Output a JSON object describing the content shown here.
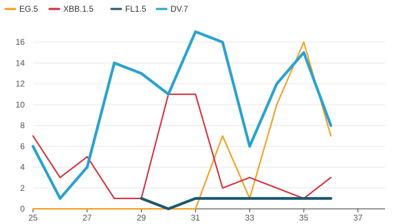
{
  "chart_data": {
    "type": "line",
    "xlim": [
      25,
      38
    ],
    "ylim": [
      0,
      17
    ],
    "x_ticks": [
      25,
      27,
      29,
      31,
      33,
      35,
      37
    ],
    "y_ticks": [
      0,
      2,
      4,
      6,
      8,
      10,
      12,
      14,
      16
    ],
    "grid": "horizontal",
    "legend_position": "top-left",
    "series": [
      {
        "name": "EG.5",
        "color": "#f29d1a",
        "x": [
          25,
          26,
          27,
          28,
          29,
          30,
          31,
          32,
          33,
          34,
          35,
          36
        ],
        "values": [
          0,
          0,
          0,
          0,
          0,
          0,
          0,
          7,
          1,
          10,
          16,
          7
        ]
      },
      {
        "name": "XBB.1.5",
        "color": "#d32f3a",
        "x": [
          25,
          26,
          27,
          28,
          29,
          30,
          31,
          32,
          33,
          34,
          35,
          36
        ],
        "values": [
          7,
          3,
          5,
          1,
          1,
          11,
          11,
          2,
          3,
          2,
          1,
          3
        ]
      },
      {
        "name": "FL1.5",
        "color": "#1c5a6e",
        "x": [
          29,
          30,
          31,
          32,
          33,
          34,
          35,
          36
        ],
        "values": [
          1,
          0,
          1,
          1,
          1,
          1,
          1,
          1
        ]
      },
      {
        "name": "DV.7",
        "color": "#2aa2cf",
        "x": [
          25,
          26,
          27,
          28,
          29,
          30,
          31,
          32,
          33,
          34,
          35,
          36
        ],
        "values": [
          6,
          1,
          4,
          14,
          13,
          11,
          17,
          16,
          6,
          12,
          15,
          8
        ]
      }
    ]
  }
}
